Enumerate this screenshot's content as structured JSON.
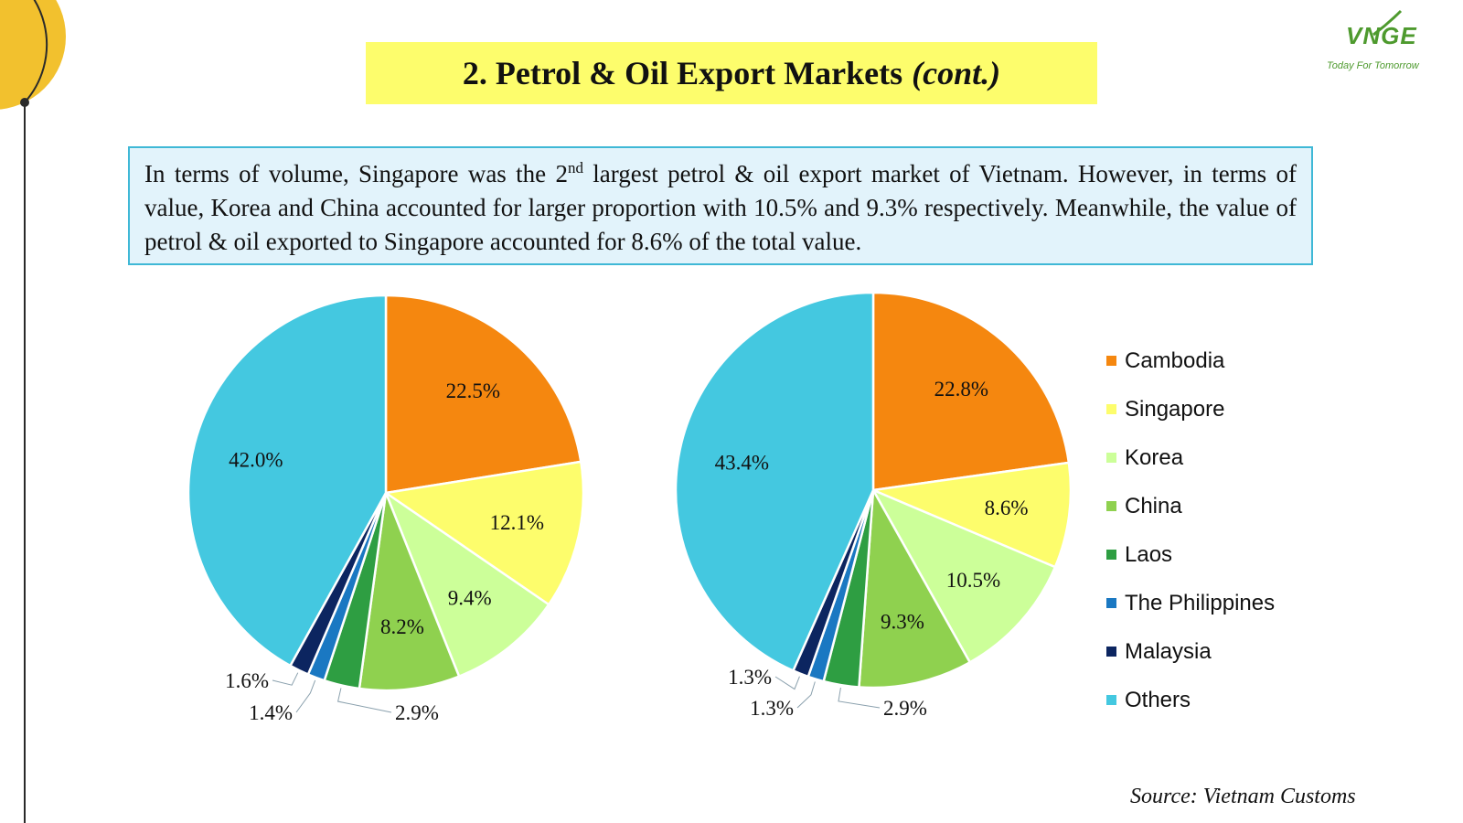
{
  "slide": {
    "title_main": "2. Petrol & Oil Export Markets",
    "title_suffix": "(cont.)",
    "logo_text": "VNGE",
    "logo_tagline": "Today For Tomorrow",
    "info_part1": "In terms of volume, Singapore was the 2",
    "info_sup": "nd",
    "info_part2": " largest petrol & oil export market of Vietnam. However, in terms of value, Korea and China accounted for larger proportion with 10.5% and 9.3% respectively. Meanwhile, the value of petrol & oil exported to Singapore accounted for 8.6% of the total value.",
    "source": "Source: Vietnam Customs"
  },
  "colors": {
    "accent_yellow": "#f2c12e",
    "title_bg": "#fdfd6c",
    "info_bg": "#e2f3fb",
    "info_border": "#3fb8d6",
    "brand_green": "#4e9a2e"
  },
  "chart_data": [
    {
      "type": "pie",
      "title": "",
      "categories": [
        "Cambodia",
        "Singapore",
        "Korea",
        "China",
        "Laos",
        "The Philippines",
        "Malaysia",
        "Others"
      ],
      "values": [
        22.5,
        12.1,
        9.4,
        8.2,
        2.9,
        1.4,
        1.6,
        42.0
      ],
      "labels": [
        "22.5%",
        "12.1%",
        "9.4%",
        "8.2%",
        "2.9%",
        "1.4%",
        "1.6%",
        "42.0%"
      ],
      "colors": [
        "#f5870f",
        "#fdfd6c",
        "#ccff99",
        "#8fd14f",
        "#2e9e42",
        "#1a78c2",
        "#0c2560",
        "#44c8e0"
      ],
      "legend": "right"
    },
    {
      "type": "pie",
      "title": "",
      "categories": [
        "Cambodia",
        "Singapore",
        "Korea",
        "China",
        "Laos",
        "The Philippines",
        "Malaysia",
        "Others"
      ],
      "values": [
        22.8,
        8.6,
        10.5,
        9.3,
        2.9,
        1.3,
        1.3,
        43.4
      ],
      "labels": [
        "22.8%",
        "8.6%",
        "10.5%",
        "9.3%",
        "2.9%",
        "1.3%",
        "1.3%",
        "43.4%"
      ],
      "colors": [
        "#f5870f",
        "#fdfd6c",
        "#ccff99",
        "#8fd14f",
        "#2e9e42",
        "#1a78c2",
        "#0c2560",
        "#44c8e0"
      ],
      "legend": "right"
    }
  ]
}
